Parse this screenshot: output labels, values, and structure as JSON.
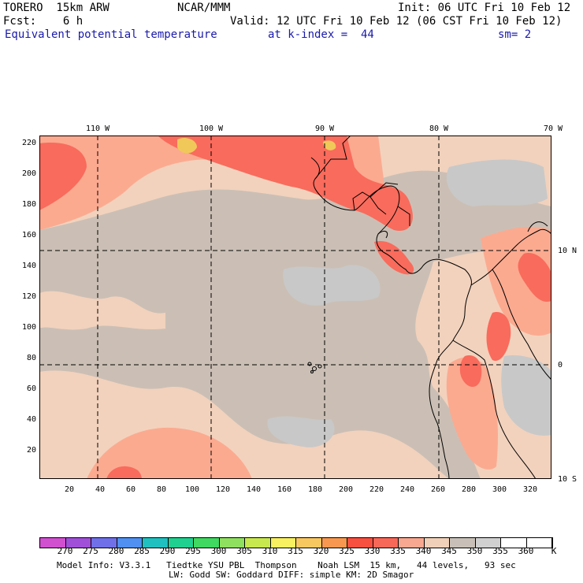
{
  "header": {
    "line1_left": "TORERO  15km ARW",
    "line1_center": "NCAR/MMM",
    "line1_right": "Init: 06 UTC Fri 10 Feb 12",
    "line2_left": "Fcst:    6 h",
    "line2_right": "Valid: 12 UTC Fri 10 Feb 12 (06 CST Fri 10 Feb 12)",
    "field_name": "Equivalent potential temperature",
    "level": "at k-index =  44",
    "smoothing": "sm= 2"
  },
  "map": {
    "lon_labels": [
      "110 W",
      "100 W",
      "90 W",
      "80 W",
      "70 W"
    ],
    "lat_labels": [
      "10 N",
      "0",
      "10 S"
    ],
    "y_grid_ticks": [
      "20",
      "40",
      "60",
      "80",
      "100",
      "120",
      "140",
      "160",
      "180",
      "200",
      "220"
    ],
    "x_grid_ticks": [
      "20",
      "40",
      "60",
      "80",
      "100",
      "120",
      "140",
      "160",
      "180",
      "200",
      "220",
      "240",
      "260",
      "280",
      "300",
      "320"
    ],
    "colors": {
      "ocean_base": "#cbbfb5",
      "cool_patch": "#c8c8c8",
      "mild": "#f2d2bd",
      "warm": "#fbaa90",
      "hot": "#f96b5c",
      "hottest": "#f0c85a",
      "coast": "#000000"
    }
  },
  "colorbar": {
    "labels": [
      "270",
      "275",
      "280",
      "285",
      "290",
      "295",
      "300",
      "305",
      "310",
      "315",
      "320",
      "325",
      "330",
      "335",
      "340",
      "345",
      "350",
      "355",
      "360"
    ],
    "unit": "K",
    "colors": [
      "#d050d0",
      "#a050d8",
      "#7070e8",
      "#5090f0",
      "#20c0c0",
      "#20d090",
      "#40d860",
      "#90e060",
      "#c8e850",
      "#f8f060",
      "#f8c860",
      "#f89850",
      "#f85040",
      "#f86858",
      "#f8a890",
      "#f0d0b8",
      "#c8c0b8",
      "#d0d0d0",
      "#ffffff",
      "#ffffff"
    ]
  },
  "footer": {
    "line1": "Model Info: V3.3.1   Tiedtke YSU PBL  Thompson    Noah LSM  15 km,   44 levels,   93 sec",
    "line2": "LW: Godd SW: Goddard DIFF: simple KM: 2D Smagor"
  }
}
